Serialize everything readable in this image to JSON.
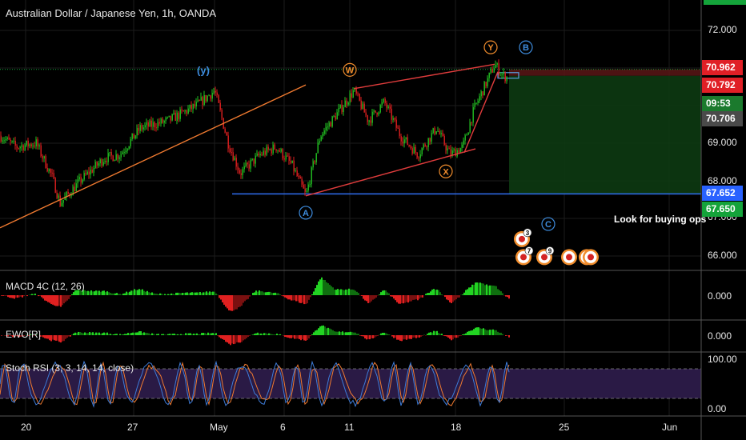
{
  "header": {
    "title": "Australian Dollar / Japanese Yen, 1h, OANDA"
  },
  "note": "Look for buying ops",
  "price_tags": [
    {
      "text": "70.962",
      "bg": "#e01f26"
    },
    {
      "text": "70.792",
      "bg": "#e01f26"
    },
    {
      "text": "09:53",
      "bg": "#1b7a2d"
    },
    {
      "text": "70.706",
      "bg": "#4a4a4a"
    },
    {
      "text": "67.652",
      "bg": "#2962ff"
    },
    {
      "text": "67.650",
      "bg": "#14a33a"
    }
  ],
  "indicators": {
    "macd": {
      "label": "MACD 4C (12, 26)",
      "axis": "0.000"
    },
    "ewo": {
      "label": "EWO[R]",
      "axis": "0.000"
    },
    "stoch": {
      "label": "Stoch RSI (3, 3, 14, 14, close)",
      "axis_top": "100.00",
      "axis_bottom": "0.00"
    }
  },
  "colors": {
    "background": "#000000",
    "grid": "#1c1c1c",
    "axis_text": "#e6e6e6",
    "bull": "#22c322",
    "bear": "#e02020",
    "blue": "#2f6df0",
    "trend_orange": "#f07a30",
    "trend_red": "#e03c3c",
    "wave_blue": "#3d8bdc",
    "wave_orange": "#f08c2c",
    "stoch_bg": "#2a1a45",
    "stoch_k": "#3d7bd8",
    "stoch_d": "#f07a30"
  },
  "chart_data": {
    "type": "candlestick",
    "symbol": "AUD/JPY",
    "timeframe": "1h",
    "y_axis": {
      "ticks": [
        66.0,
        67.0,
        68.0,
        69.0,
        70.0,
        71.0,
        72.0
      ],
      "tick_labels": [
        "66.000",
        "67.000",
        "68.000",
        "69.000",
        "",
        "",
        "72.000"
      ],
      "range": [
        65.6,
        72.6
      ]
    },
    "x_axis": {
      "tick_labels": [
        "20",
        "27",
        "May",
        "6",
        "11",
        "18",
        "25",
        "Jun"
      ]
    },
    "price_path": [
      [
        0,
        69.2
      ],
      [
        20,
        68.9
      ],
      [
        45,
        69.0
      ],
      [
        65,
        68.1
      ],
      [
        75,
        67.4
      ],
      [
        100,
        68.0
      ],
      [
        130,
        68.6
      ],
      [
        150,
        68.7
      ],
      [
        175,
        69.4
      ],
      [
        210,
        69.6
      ],
      [
        245,
        70.0
      ],
      [
        268,
        70.4
      ],
      [
        285,
        69.0
      ],
      [
        300,
        68.2
      ],
      [
        325,
        68.7
      ],
      [
        345,
        68.9
      ],
      [
        365,
        68.4
      ],
      [
        382,
        67.6
      ],
      [
        400,
        69.2
      ],
      [
        425,
        69.9
      ],
      [
        442,
        70.4
      ],
      [
        460,
        69.6
      ],
      [
        480,
        70.1
      ],
      [
        500,
        69.2
      ],
      [
        522,
        68.7
      ],
      [
        545,
        69.4
      ],
      [
        562,
        68.7
      ],
      [
        578,
        68.9
      ],
      [
        592,
        69.9
      ],
      [
        605,
        70.5
      ],
      [
        618,
        71.1
      ],
      [
        628,
        70.8
      ],
      [
        634,
        70.75
      ]
    ],
    "levels": [
      {
        "name": "last-price",
        "price": 70.962,
        "style": "dotted",
        "color": "#14a33a"
      },
      {
        "name": "support",
        "price": 67.652,
        "color": "#2f6df0"
      }
    ],
    "position_box": {
      "entry": 70.792,
      "stop": 70.962,
      "target": 67.652
    },
    "trendlines": [
      {
        "color": "#f07a30",
        "from": [
          0,
          66.75
        ],
        "to": [
          382,
          70.55
        ]
      },
      {
        "color": "#e03c3c",
        "from": [
          382,
          67.6
        ],
        "to": [
          594,
          68.85
        ]
      },
      {
        "color": "#e03c3c",
        "from": [
          442,
          70.45
        ],
        "to": [
          618,
          71.1
        ]
      },
      {
        "color": "#e03c3c",
        "from": [
          580,
          68.75
        ],
        "to": [
          622,
          70.9
        ]
      }
    ],
    "wave_labels": [
      {
        "text": "(y)",
        "x": 254,
        "price": 70.95,
        "style": "plain",
        "color": "#3d8bdc"
      },
      {
        "text": "W",
        "x": 437,
        "price": 70.95,
        "style": "circle",
        "color": "#f08c2c"
      },
      {
        "text": "Y",
        "x": 613,
        "price": 71.55,
        "style": "circle",
        "color": "#f08c2c"
      },
      {
        "text": "B",
        "x": 657,
        "price": 71.55,
        "style": "circle",
        "color": "#3d8bdc"
      },
      {
        "text": "X",
        "x": 557,
        "price": 68.25,
        "style": "circle",
        "color": "#f08c2c"
      },
      {
        "text": "A",
        "x": 382,
        "price": 67.15,
        "style": "circle",
        "color": "#3d8bdc"
      },
      {
        "text": "C",
        "x": 685,
        "price": 66.85,
        "style": "circle",
        "color": "#3d8bdc"
      }
    ],
    "events": [
      {
        "x": 652,
        "price": 66.45,
        "count": "3"
      },
      {
        "x": 654,
        "price": 65.97,
        "count": "7"
      },
      {
        "x": 680,
        "price": 65.97,
        "count": "9"
      },
      {
        "x": 711,
        "price": 65.97,
        "count": ""
      },
      {
        "x": 733,
        "price": 65.97,
        "count": ""
      },
      {
        "x": 738,
        "price": 65.97,
        "count": ""
      }
    ]
  }
}
